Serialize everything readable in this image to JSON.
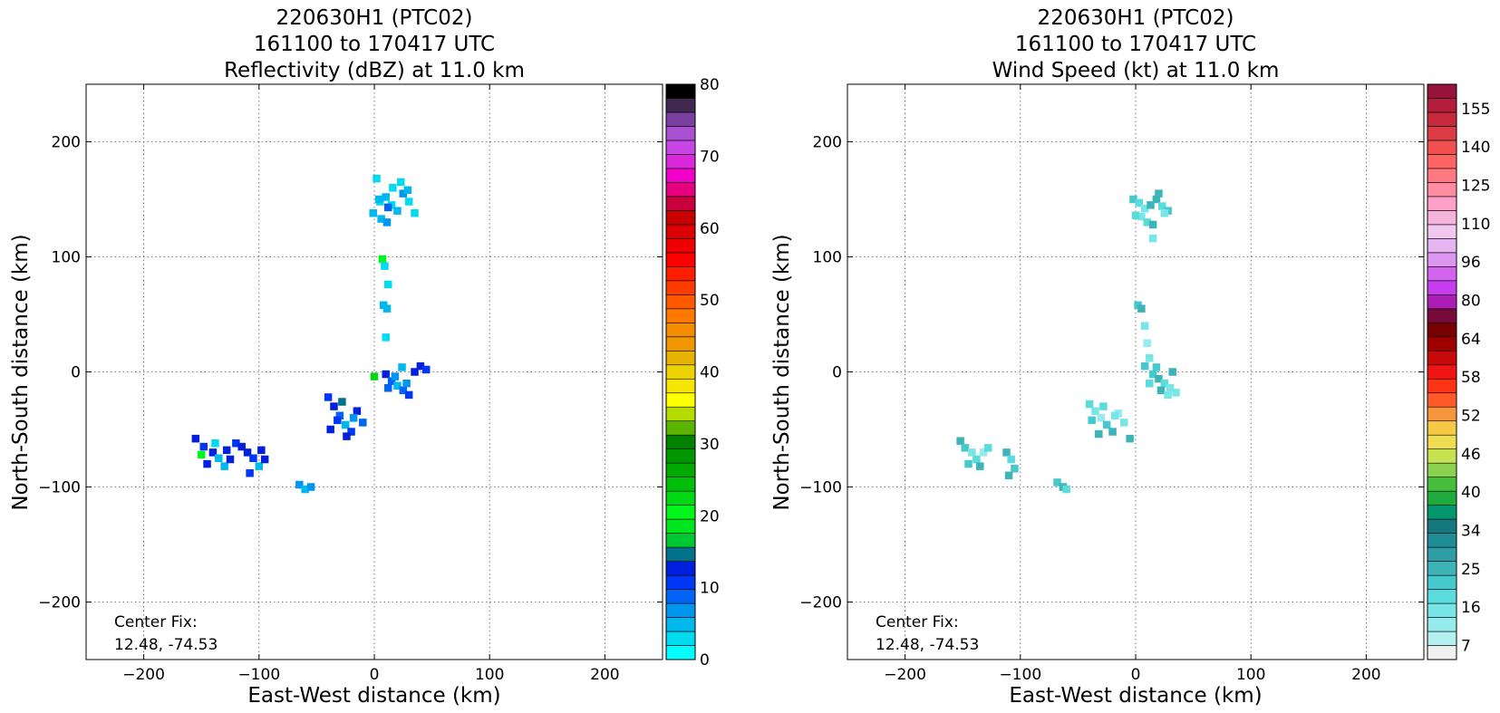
{
  "chart_data": [
    {
      "type": "heatmap",
      "title": [
        "220630H1 (PTC02)",
        "161100 to 170417 UTC",
        "Reflectivity (dBZ) at 11.0 km"
      ],
      "xlabel": "East-West distance (km)",
      "ylabel": "North-South distance (km)",
      "xlim": [
        -250,
        250
      ],
      "ylim": [
        -250,
        250
      ],
      "xticks": [
        -200,
        -100,
        0,
        100,
        200
      ],
      "yticks": [
        -200,
        -100,
        0,
        100,
        200
      ],
      "grid": true,
      "annotation": [
        "Center Fix:",
        "12.48, -74.53"
      ],
      "colorbar": {
        "min": 0,
        "max": 80,
        "ticks": [
          "0",
          "10",
          "20",
          "30",
          "40",
          "50",
          "60",
          "70",
          "80"
        ],
        "colors": [
          "#00ffff",
          "#00dbf0",
          "#00b8ee",
          "#0096f0",
          "#0064f5",
          "#0037f5",
          "#0020dd",
          "#00728a",
          "#00c832",
          "#00e61e",
          "#00f51a",
          "#00d814",
          "#00be0a",
          "#00aa00",
          "#009600",
          "#008200",
          "#5ab400",
          "#b4dc00",
          "#ffff00",
          "#f5e600",
          "#ebd200",
          "#e6b400",
          "#f09600",
          "#f58c00",
          "#ff7800",
          "#ff5a00",
          "#ff3c00",
          "#ff1e00",
          "#ff0000",
          "#ee0000",
          "#dc0000",
          "#c80000",
          "#c8003c",
          "#e6007d",
          "#f000c8",
          "#dc28dc",
          "#c846e6",
          "#aa50d2",
          "#7a40a0",
          "#402850",
          "#000000"
        ]
      },
      "series": [
        {
          "x": [
            5,
            10,
            15,
            20,
            25,
            30,
            35,
            -1,
            6,
            11,
            16,
            23,
            29,
            2,
            12,
            4
          ],
          "y": [
            148,
            152,
            145,
            140,
            155,
            148,
            138,
            138,
            133,
            130,
            160,
            165,
            158,
            168,
            143,
            150
          ],
          "value": [
            3,
            5,
            2,
            4,
            6,
            3,
            2,
            4,
            5,
            7,
            3,
            2,
            4,
            3,
            8,
            5
          ]
        },
        {
          "x": [
            7,
            9,
            12,
            8,
            11,
            10
          ],
          "y": [
            98,
            92,
            76,
            58,
            55,
            30
          ],
          "value": [
            20,
            3,
            3,
            4,
            5,
            2
          ]
        },
        {
          "x": [
            10,
            15,
            20,
            25,
            30,
            35,
            40,
            45,
            18,
            24,
            28,
            12,
            0
          ],
          "y": [
            -2,
            -8,
            -12,
            -16,
            -20,
            0,
            5,
            2,
            -4,
            4,
            -10,
            -14,
            -4
          ],
          "value": [
            12,
            8,
            5,
            9,
            10,
            13,
            12,
            11,
            6,
            4,
            7,
            9,
            22
          ]
        },
        {
          "x": [
            -40,
            -35,
            -30,
            -25,
            -20,
            -15,
            -10,
            -38,
            -28,
            -18,
            -32,
            -24
          ],
          "y": [
            -22,
            -30,
            -38,
            -46,
            -52,
            -34,
            -44,
            -50,
            -26,
            -40,
            -42,
            -56
          ],
          "value": [
            10,
            12,
            9,
            4,
            11,
            13,
            8,
            12,
            14,
            6,
            10,
            12
          ]
        },
        {
          "x": [
            -155,
            -148,
            -140,
            -135,
            -128,
            -120,
            -130,
            -145,
            -138,
            -125,
            -150,
            -115,
            -110,
            -105,
            -100,
            -95,
            -108,
            -98
          ],
          "y": [
            -58,
            -65,
            -70,
            -75,
            -68,
            -62,
            -82,
            -80,
            -62,
            -76,
            -72,
            -65,
            -70,
            -75,
            -82,
            -76,
            -88,
            -68
          ],
          "value": [
            12,
            11,
            13,
            4,
            12,
            11,
            5,
            12,
            3,
            12,
            20,
            13,
            12,
            11,
            5,
            12,
            11,
            13
          ]
        },
        {
          "x": [
            -65,
            -60,
            -55
          ],
          "y": [
            -98,
            -102,
            -100
          ],
          "value": [
            6,
            4,
            7
          ]
        }
      ]
    },
    {
      "type": "heatmap",
      "title": [
        "220630H1 (PTC02)",
        "161100 to 170417 UTC",
        "Wind Speed (kt) at 11.0 km"
      ],
      "xlabel": "East-West distance (km)",
      "ylabel": "North-South distance (km)",
      "xlim": [
        -250,
        250
      ],
      "ylim": [
        -250,
        250
      ],
      "xticks": [
        -200,
        -100,
        0,
        100,
        200
      ],
      "yticks": [
        -200,
        -100,
        0,
        100,
        200
      ],
      "grid": true,
      "annotation": [
        "Center Fix:",
        "12.48, -74.53"
      ],
      "colorbar": {
        "min": 4,
        "max": 160,
        "ticks": [
          "7",
          "16",
          "25",
          "34",
          "40",
          "46",
          "52",
          "58",
          "64",
          "80",
          "96",
          "110",
          "125",
          "140",
          "155"
        ],
        "colors": [
          "#f0f0f0",
          "#b4f0f0",
          "#96ecec",
          "#78e6e6",
          "#5adcdc",
          "#46c8cc",
          "#3cb4b8",
          "#2d9ea6",
          "#1e8c96",
          "#14787e",
          "#00966e",
          "#1eaa3c",
          "#46be3c",
          "#8cd250",
          "#c8e150",
          "#f0dc50",
          "#f5c846",
          "#f5963c",
          "#ff5a28",
          "#ff3214",
          "#f01414",
          "#c80a0a",
          "#a00000",
          "#780000",
          "#780a3c",
          "#aa1eb4",
          "#c83cf0",
          "#d264f0",
          "#dc96f0",
          "#e6b4f0",
          "#f0c8f0",
          "#f5b4dc",
          "#ffa0c8",
          "#ff8ca0",
          "#ff7882",
          "#ff6464",
          "#f05050",
          "#dc3c46",
          "#c8283c",
          "#b41e3c",
          "#96143c"
        ]
      },
      "series": [
        {
          "x": [
            -2,
            3,
            8,
            13,
            18,
            23,
            28,
            5,
            10,
            15,
            20,
            25,
            0,
            15
          ],
          "y": [
            150,
            147,
            142,
            145,
            150,
            144,
            140,
            135,
            130,
            128,
            155,
            138,
            136,
            116
          ],
          "value": [
            25,
            22,
            16,
            27,
            28,
            20,
            24,
            18,
            23,
            28,
            27,
            19,
            22,
            16
          ]
        },
        {
          "x": [
            2,
            5,
            8,
            10,
            12,
            8
          ],
          "y": [
            58,
            55,
            40,
            25,
            12,
            5
          ],
          "value": [
            25,
            28,
            16,
            14,
            18,
            24
          ]
        },
        {
          "x": [
            15,
            20,
            25,
            30,
            35,
            18,
            22,
            28,
            32,
            12
          ],
          "y": [
            -2,
            -6,
            -10,
            -14,
            -18,
            4,
            -16,
            -20,
            0,
            -10
          ],
          "value": [
            25,
            28,
            22,
            16,
            19,
            25,
            28,
            18,
            27,
            22
          ]
        },
        {
          "x": [
            -40,
            -35,
            -30,
            -25,
            -20,
            -15,
            -10,
            -38,
            -28,
            -18,
            -32,
            -5
          ],
          "y": [
            -28,
            -34,
            -40,
            -46,
            -52,
            -36,
            -44,
            -42,
            -30,
            -38,
            -54,
            -58
          ],
          "value": [
            22,
            16,
            14,
            25,
            28,
            14,
            16,
            25,
            20,
            18,
            27,
            28
          ]
        },
        {
          "x": [
            -152,
            -148,
            -142,
            -138,
            -132,
            -128,
            -145,
            -135,
            -112,
            -108,
            -105,
            -110
          ],
          "y": [
            -60,
            -66,
            -70,
            -76,
            -70,
            -66,
            -80,
            -82,
            -70,
            -76,
            -84,
            -90
          ],
          "value": [
            28,
            25,
            16,
            22,
            14,
            20,
            24,
            27,
            28,
            22,
            25,
            27
          ]
        },
        {
          "x": [
            -68,
            -63,
            -60
          ],
          "y": [
            -96,
            -100,
            -102
          ],
          "value": [
            25,
            28,
            22
          ]
        }
      ]
    }
  ]
}
